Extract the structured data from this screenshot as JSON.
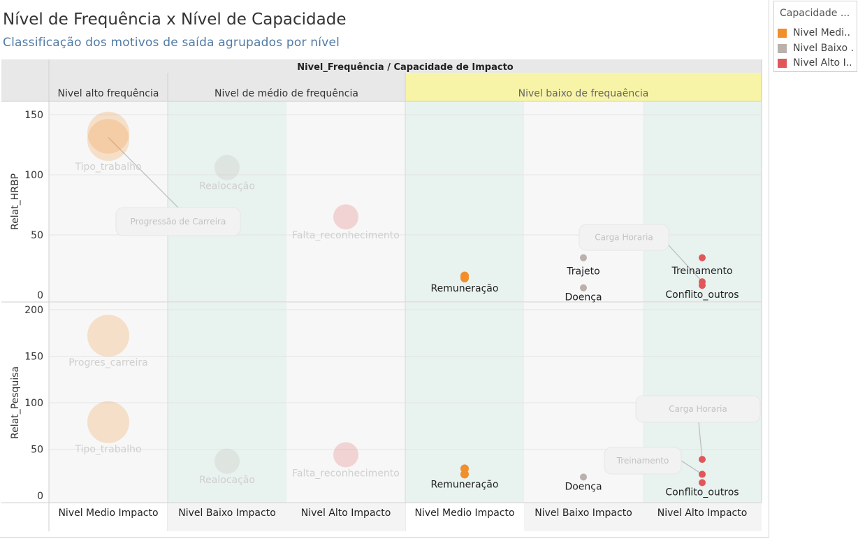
{
  "header": {
    "title": "Nível de Frequência  x Nível de Capacidade",
    "subtitle": "Classificação dos motivos de saída agrupados por nível",
    "column_header_title": "Nivel_Frequência  /  Capacidade de Impacto"
  },
  "legend": {
    "title": "Capacidade ...",
    "items": [
      {
        "label": "Nivel Medi..",
        "color": "#f28e2b"
      },
      {
        "label": "Nivel Baixo ..",
        "color": "#bab0ac"
      },
      {
        "label": "Nivel Alto I..",
        "color": "#e15759"
      }
    ]
  },
  "chart_data": {
    "type": "scatter",
    "frequency_groups": [
      {
        "label": "Nivel alto frequência",
        "impacts": [
          "Nivel Medio Impacto"
        ],
        "highlighted": false
      },
      {
        "label": "Nivel de médio de frequência",
        "impacts": [
          "Nivel Baixo Impacto",
          "Nivel Alto Impacto"
        ],
        "highlighted": false
      },
      {
        "label": "Nivel baixo de frequaência",
        "impacts": [
          "Nivel Medio Impacto",
          "Nivel Baixo Impacto",
          "Nivel Alto Impacto"
        ],
        "highlighted": true
      }
    ],
    "columns": [
      {
        "label": "Nivel Medio Impacto",
        "group": 0
      },
      {
        "label": "Nivel Baixo Impacto",
        "group": 1
      },
      {
        "label": "Nivel Alto Impacto",
        "group": 1
      },
      {
        "label": "Nivel Medio Impacto",
        "group": 2
      },
      {
        "label": "Nivel Baixo Impacto",
        "group": 2
      },
      {
        "label": "Nivel Alto Impacto",
        "group": 2
      }
    ],
    "rows": [
      {
        "label": "Relat_HRBP",
        "ylim": [
          0,
          160
        ],
        "ticks": [
          0,
          50,
          100,
          150
        ]
      },
      {
        "label": "Relat_Pesquisa",
        "ylim": [
          0,
          210
        ],
        "ticks": [
          0,
          50,
          100,
          150,
          200
        ]
      }
    ],
    "points": [
      {
        "row": 0,
        "col": 0,
        "y": 135,
        "capacity": "Nivel Medio Impacto",
        "faded": true,
        "size": 30
      },
      {
        "row": 0,
        "col": 0,
        "y": 129,
        "capacity": "Nivel Medio Impacto",
        "faded": true,
        "size": 30,
        "label": "Tipo_trabalho"
      },
      {
        "row": 0,
        "col": 1,
        "y": 106,
        "capacity": "Nivel Baixo Impacto",
        "faded": true,
        "size": 18,
        "label": "Realocação"
      },
      {
        "row": 0,
        "col": 2,
        "y": 65,
        "capacity": "Nivel Alto Impacto",
        "faded": true,
        "size": 18,
        "label": "Falta_reconhecimento"
      },
      {
        "row": 0,
        "col": 3,
        "y": 16,
        "capacity": "Nivel Medio Impacto",
        "faded": false,
        "size": 6
      },
      {
        "row": 0,
        "col": 3,
        "y": 14,
        "capacity": "Nivel Medio Impacto",
        "faded": false,
        "size": 6,
        "label": "Remuneração"
      },
      {
        "row": 0,
        "col": 4,
        "y": 31,
        "capacity": "Nivel Baixo Impacto",
        "faded": false,
        "size": 5,
        "label": "Trajeto"
      },
      {
        "row": 0,
        "col": 4,
        "y": 6,
        "capacity": "Nivel Baixo Impacto",
        "faded": false,
        "size": 5,
        "label": "Doença"
      },
      {
        "row": 0,
        "col": 5,
        "y": 31,
        "capacity": "Nivel Alto Impacto",
        "faded": false,
        "size": 5
      },
      {
        "row": 0,
        "col": 5,
        "y": 11,
        "capacity": "Nivel Alto Impacto",
        "faded": false,
        "size": 5,
        "label": "Treinamento"
      },
      {
        "row": 0,
        "col": 5,
        "y": 8,
        "capacity": "Nivel Alto Impacto",
        "faded": false,
        "size": 5,
        "label": "Conflito_outros"
      },
      {
        "row": 1,
        "col": 0,
        "y": 172,
        "capacity": "Nivel Medio Impacto",
        "faded": true,
        "size": 30,
        "label": "Progres_carreira"
      },
      {
        "row": 1,
        "col": 0,
        "y": 79,
        "capacity": "Nivel Medio Impacto",
        "faded": true,
        "size": 30,
        "label": "Tipo_trabalho"
      },
      {
        "row": 1,
        "col": 1,
        "y": 37,
        "capacity": "Nivel Baixo Impacto",
        "faded": true,
        "size": 18,
        "label": "Realocação"
      },
      {
        "row": 1,
        "col": 2,
        "y": 44,
        "capacity": "Nivel Alto Impacto",
        "faded": true,
        "size": 18,
        "label": "Falta_reconhecimento"
      },
      {
        "row": 1,
        "col": 3,
        "y": 29,
        "capacity": "Nivel Medio Impacto",
        "faded": false,
        "size": 6
      },
      {
        "row": 1,
        "col": 3,
        "y": 23,
        "capacity": "Nivel Medio Impacto",
        "faded": false,
        "size": 6,
        "label": "Remuneração"
      },
      {
        "row": 1,
        "col": 4,
        "y": 20,
        "capacity": "Nivel Baixo Impacto",
        "faded": false,
        "size": 5,
        "label": "Doença"
      },
      {
        "row": 1,
        "col": 5,
        "y": 39,
        "capacity": "Nivel Alto Impacto",
        "faded": false,
        "size": 5
      },
      {
        "row": 1,
        "col": 5,
        "y": 23,
        "capacity": "Nivel Alto Impacto",
        "faded": false,
        "size": 5
      },
      {
        "row": 1,
        "col": 5,
        "y": 14,
        "capacity": "Nivel Alto Impacto",
        "faded": false,
        "size": 5,
        "label": "Conflito_outros"
      }
    ],
    "annotations": [
      {
        "row": 0,
        "col": 0,
        "text": "Progressão de Carreira",
        "target_col": 0,
        "target_y": 131
      },
      {
        "row": 0,
        "col": 4,
        "text": "Carga Horaria",
        "target_col": 5,
        "target_y": 11
      },
      {
        "row": 1,
        "col": 5,
        "text": "Carga Horaria",
        "target_col": 5,
        "target_y": 39
      },
      {
        "row": 1,
        "col": 5,
        "text": "Treinamento",
        "target_col": 5,
        "target_y": 23
      }
    ],
    "grid": true
  }
}
